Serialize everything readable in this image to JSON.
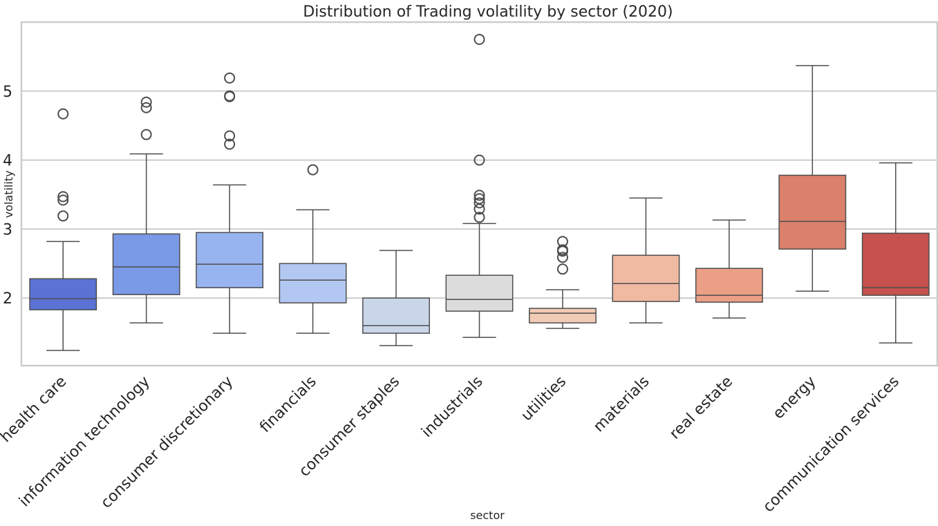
{
  "chart_data": {
    "type": "box",
    "title": "Distribution of Trading volatility by sector (2020)",
    "xlabel": "sector",
    "ylabel": "volatility",
    "ylim": [
      1.02,
      6.0
    ],
    "yticks": [
      "2",
      "3",
      "4",
      "5"
    ],
    "ytick_values": [
      2,
      3,
      4,
      5
    ],
    "grid": "horizontal",
    "palette": "coolwarm",
    "categories": [
      "health care",
      "information technology",
      "consumer discretionary",
      "financials",
      "consumer staples",
      "industrials",
      "utilities",
      "materials",
      "real estate",
      "energy",
      "communication services"
    ],
    "colors": [
      "#5b73d5",
      "#7a99e6",
      "#97b4f0",
      "#b2c8f2",
      "#c9d6ea",
      "#dcdcdc",
      "#f2cbb6",
      "#efb9a2",
      "#eb9f86",
      "#da806b",
      "#c5524e"
    ],
    "boxes": [
      {
        "whislo": 1.24,
        "q1": 1.83,
        "med": 1.99,
        "q3": 2.28,
        "whishi": 2.82,
        "fliers": [
          4.67,
          3.47,
          3.42,
          3.19
        ]
      },
      {
        "whislo": 1.64,
        "q1": 2.05,
        "med": 2.45,
        "q3": 2.93,
        "whishi": 4.09,
        "fliers": [
          4.84,
          4.76,
          4.37
        ]
      },
      {
        "whislo": 1.49,
        "q1": 2.15,
        "med": 2.49,
        "q3": 2.95,
        "whishi": 3.64,
        "fliers": [
          5.19,
          4.93,
          4.92,
          4.35,
          4.23
        ]
      },
      {
        "whislo": 1.49,
        "q1": 1.93,
        "med": 2.26,
        "q3": 2.5,
        "whishi": 3.28,
        "fliers": [
          3.86
        ]
      },
      {
        "whislo": 1.31,
        "q1": 1.49,
        "med": 1.6,
        "q3": 2.0,
        "whishi": 2.69,
        "fliers": []
      },
      {
        "whislo": 1.43,
        "q1": 1.81,
        "med": 1.98,
        "q3": 2.33,
        "whishi": 3.08,
        "fliers": [
          5.75,
          4.0,
          3.49,
          3.44,
          3.38,
          3.29,
          3.17
        ]
      },
      {
        "whislo": 1.56,
        "q1": 1.64,
        "med": 1.78,
        "q3": 1.85,
        "whishi": 2.12,
        "fliers": [
          2.82,
          2.7,
          2.68,
          2.59,
          2.42
        ]
      },
      {
        "whislo": 1.64,
        "q1": 1.95,
        "med": 2.21,
        "q3": 2.62,
        "whishi": 3.45,
        "fliers": []
      },
      {
        "whislo": 1.71,
        "q1": 1.94,
        "med": 2.04,
        "q3": 2.43,
        "whishi": 3.13,
        "fliers": []
      },
      {
        "whislo": 2.1,
        "q1": 2.71,
        "med": 3.11,
        "q3": 3.78,
        "whishi": 5.37,
        "fliers": []
      },
      {
        "whislo": 1.35,
        "q1": 2.04,
        "med": 2.15,
        "q3": 2.94,
        "whishi": 3.96,
        "fliers": []
      }
    ]
  }
}
